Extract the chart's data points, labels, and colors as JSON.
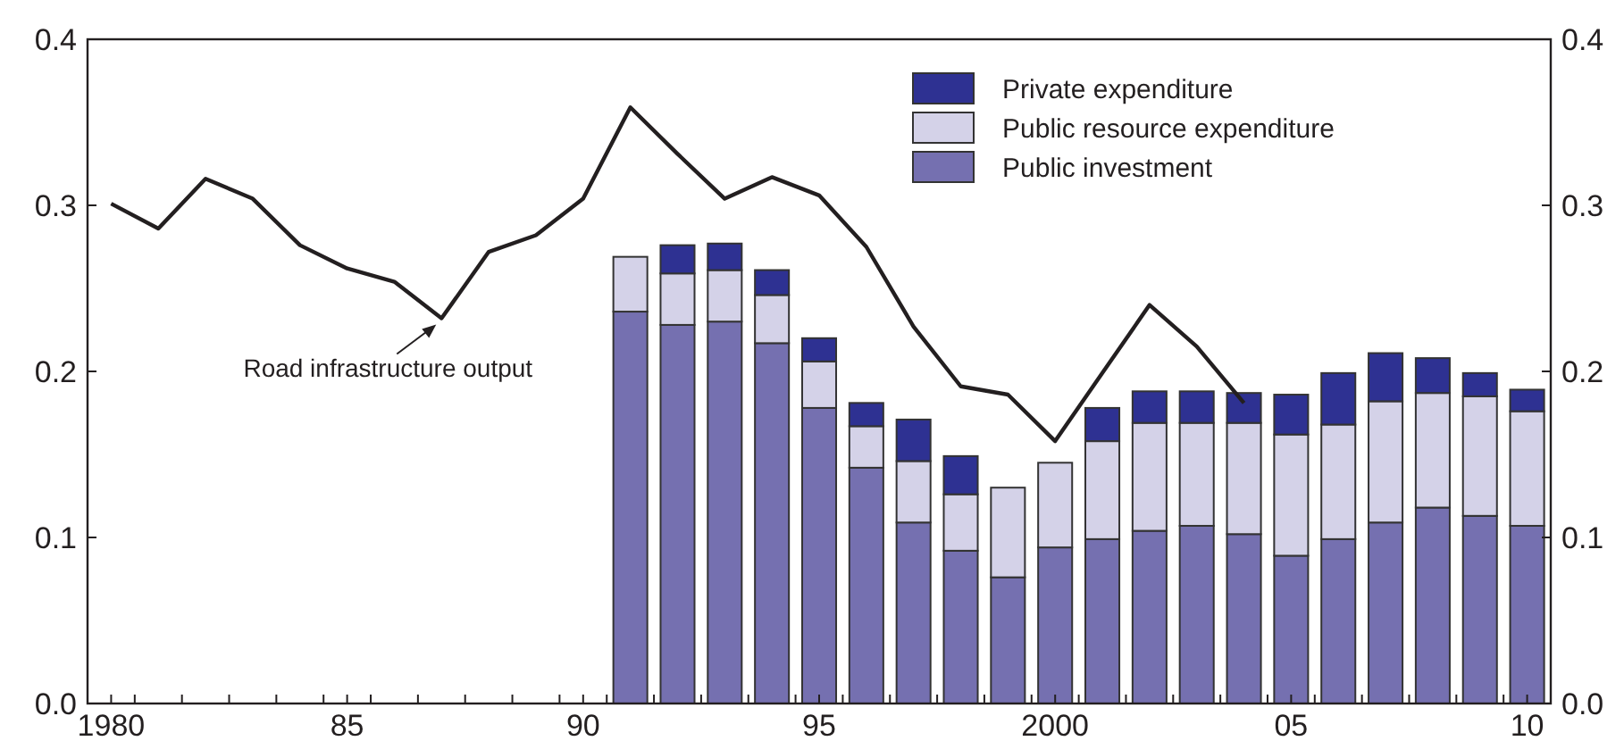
{
  "chart_data": {
    "type": "bar",
    "stacked": true,
    "series": [
      {
        "name": "Public investment",
        "color": "#7570b0",
        "x": [
          1991,
          1992,
          1993,
          1994,
          1995,
          1996,
          1997,
          1998,
          1999,
          2000,
          2001,
          2002,
          2003,
          2004,
          2005,
          2006,
          2007,
          2008,
          2009,
          2010
        ],
        "values": [
          0.236,
          0.228,
          0.23,
          0.217,
          0.178,
          0.142,
          0.109,
          0.092,
          0.076,
          0.094,
          0.099,
          0.104,
          0.107,
          0.102,
          0.089,
          0.099,
          0.109,
          0.118,
          0.113,
          0.107
        ]
      },
      {
        "name": "Public resource expenditure",
        "color": "#d4d2e8",
        "x": [
          1991,
          1992,
          1993,
          1994,
          1995,
          1996,
          1997,
          1998,
          1999,
          2000,
          2001,
          2002,
          2003,
          2004,
          2005,
          2006,
          2007,
          2008,
          2009,
          2010
        ],
        "values": [
          0.033,
          0.031,
          0.031,
          0.029,
          0.028,
          0.025,
          0.037,
          0.034,
          0.054,
          0.051,
          0.059,
          0.065,
          0.062,
          0.067,
          0.073,
          0.069,
          0.073,
          0.069,
          0.072,
          0.069
        ]
      },
      {
        "name": "Private expenditure",
        "color": "#2e3192",
        "x": [
          1991,
          1992,
          1993,
          1994,
          1995,
          1996,
          1997,
          1998,
          1999,
          2000,
          2001,
          2002,
          2003,
          2004,
          2005,
          2006,
          2007,
          2008,
          2009,
          2010
        ],
        "values": [
          0,
          0.017,
          0.016,
          0.015,
          0.014,
          0.014,
          0.025,
          0.023,
          0,
          0,
          0.02,
          0.019,
          0.019,
          0.018,
          0.024,
          0.031,
          0.029,
          0.021,
          0.014,
          0.013
        ]
      },
      {
        "type": "line",
        "color": "#231f20",
        "x": [
          1980,
          1981,
          1982,
          1983,
          1984,
          1985,
          1986,
          1987,
          1988,
          1989,
          1990,
          1991,
          1992,
          1993,
          1994,
          1995,
          1996,
          1997,
          1998,
          1999,
          2000,
          2001,
          2002,
          2003,
          2004
        ],
        "values": [
          0.301,
          0.286,
          0.316,
          0.304,
          0.276,
          0.262,
          0.254,
          0.232,
          0.272,
          0.282,
          0.304,
          0.359,
          0.331,
          0.304,
          0.317,
          0.306,
          0.275,
          0.227,
          0.191,
          0.186,
          0.158,
          0.199,
          0.24,
          0.215,
          0.181
        ]
      }
    ],
    "xlim": [
      1979.5,
      2010.5
    ],
    "xticks": [
      {
        "value": 1980,
        "label": "1980"
      },
      {
        "value": 1985,
        "label": "85"
      },
      {
        "value": 1990,
        "label": "90"
      },
      {
        "value": 1995,
        "label": "95"
      },
      {
        "value": 2000,
        "label": "2000"
      },
      {
        "value": 2005,
        "label": "05"
      },
      {
        "value": 2010,
        "label": "10"
      },
      {
        "value": 1980.5,
        "label": null
      },
      {
        "value": 1981.5,
        "label": null
      },
      {
        "value": 1982.5,
        "label": null
      },
      {
        "value": 1983.5,
        "label": null
      },
      {
        "value": 1984.5,
        "label": null
      },
      {
        "value": 1985.5,
        "label": null
      },
      {
        "value": 1986.5,
        "label": null
      },
      {
        "value": 1987.5,
        "label": null
      },
      {
        "value": 1988.5,
        "label": null
      },
      {
        "value": 1989.5,
        "label": null
      },
      {
        "value": 1990.5,
        "label": null
      },
      {
        "value": 1991.5,
        "label": null
      },
      {
        "value": 1992.5,
        "label": null
      },
      {
        "value": 1993.5,
        "label": null
      },
      {
        "value": 1994.5,
        "label": null
      },
      {
        "value": 1995.5,
        "label": null
      },
      {
        "value": 1996.5,
        "label": null
      },
      {
        "value": 1997.5,
        "label": null
      },
      {
        "value": 1998.5,
        "label": null
      },
      {
        "value": 1999.5,
        "label": null
      },
      {
        "value": 2000.5,
        "label": null
      },
      {
        "value": 2001.5,
        "label": null
      },
      {
        "value": 2002.5,
        "label": null
      },
      {
        "value": 2003.5,
        "label": null
      },
      {
        "value": 2004.5,
        "label": null
      },
      {
        "value": 2005.5,
        "label": null
      },
      {
        "value": 2006.5,
        "label": null
      },
      {
        "value": 2007.5,
        "label": null
      },
      {
        "value": 2008.5,
        "label": null
      },
      {
        "value": 2009.5,
        "label": null
      }
    ],
    "ylim": [
      0,
      0.4
    ],
    "yticks": [
      {
        "value": 0,
        "label": "0.0"
      },
      0.1,
      0.2,
      0.3,
      0.4
    ],
    "y2lim": [
      0,
      0.4
    ],
    "y2ticks": [
      {
        "value": 0,
        "label": "0.0"
      },
      0.1,
      0.2,
      0.3,
      0.4
    ],
    "annotations": [
      {
        "text": "Road infrastructure output",
        "x": 1987,
        "y": 0.232
      }
    ],
    "legend": "top right",
    "grid": false
  }
}
